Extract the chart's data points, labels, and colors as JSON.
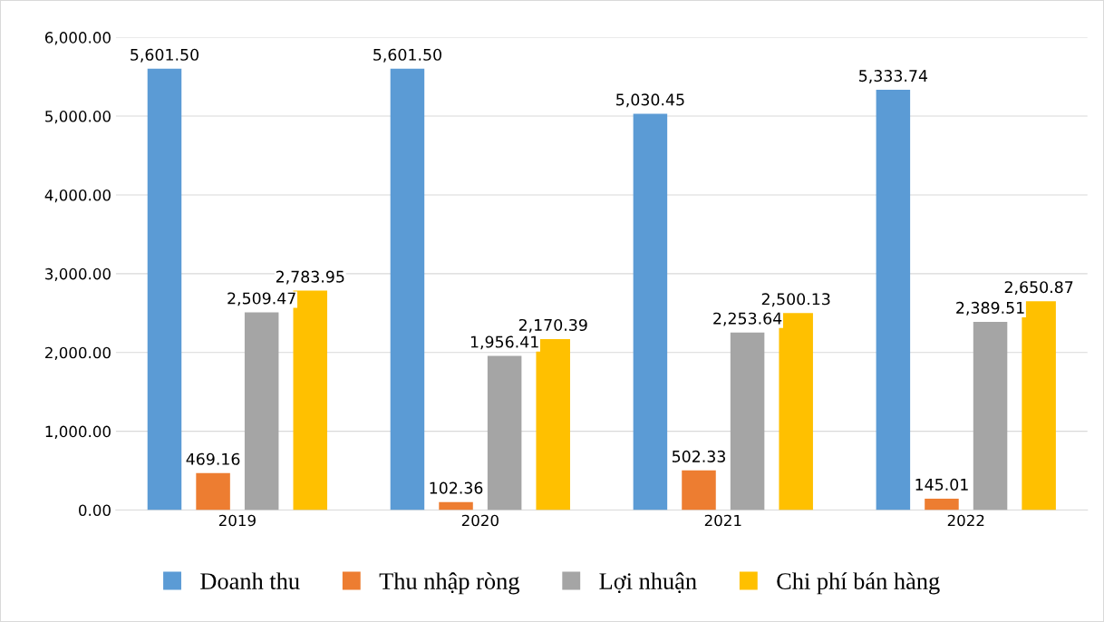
{
  "chart_data": {
    "type": "bar",
    "categories": [
      "2019",
      "2020",
      "2021",
      "2022"
    ],
    "series": [
      {
        "name": "Doanh thu",
        "color": "#5b9bd5",
        "values": [
          5601.5,
          5601.5,
          5030.45,
          5333.74
        ],
        "value_labels": [
          "5,601.50",
          "5,601.50",
          "5,030.45",
          "5,333.74"
        ]
      },
      {
        "name": "Thu nhập ròng",
        "color": "#ed7d31",
        "values": [
          469.16,
          102.36,
          502.33,
          145.01
        ],
        "value_labels": [
          "469.16",
          "102.36",
          "502.33",
          "145.01"
        ]
      },
      {
        "name": "Lợi nhuận",
        "color": "#a5a5a5",
        "values": [
          2509.47,
          1956.41,
          2253.64,
          2389.51
        ],
        "value_labels": [
          "2,509.47",
          "1,956.41",
          "2,253.64",
          "2,389.51"
        ]
      },
      {
        "name": "Chi phí bán hàng",
        "color": "#ffc000",
        "values": [
          2783.95,
          2170.39,
          2500.13,
          2650.87
        ],
        "value_labels": [
          "2,783.95",
          "2,170.39",
          "2,500.13",
          "2,650.87"
        ]
      }
    ],
    "ylim": [
      0,
      6000
    ],
    "yticks": [
      {
        "value": 0,
        "label": "0.00"
      },
      {
        "value": 1000,
        "label": "1,000.00"
      },
      {
        "value": 2000,
        "label": "2,000.00"
      },
      {
        "value": 3000,
        "label": "3,000.00"
      },
      {
        "value": 4000,
        "label": "4,000.00"
      },
      {
        "value": 5000,
        "label": "5,000.00"
      },
      {
        "value": 6000,
        "label": "6,000.00"
      }
    ],
    "grid": "y",
    "legend": "bottom"
  }
}
